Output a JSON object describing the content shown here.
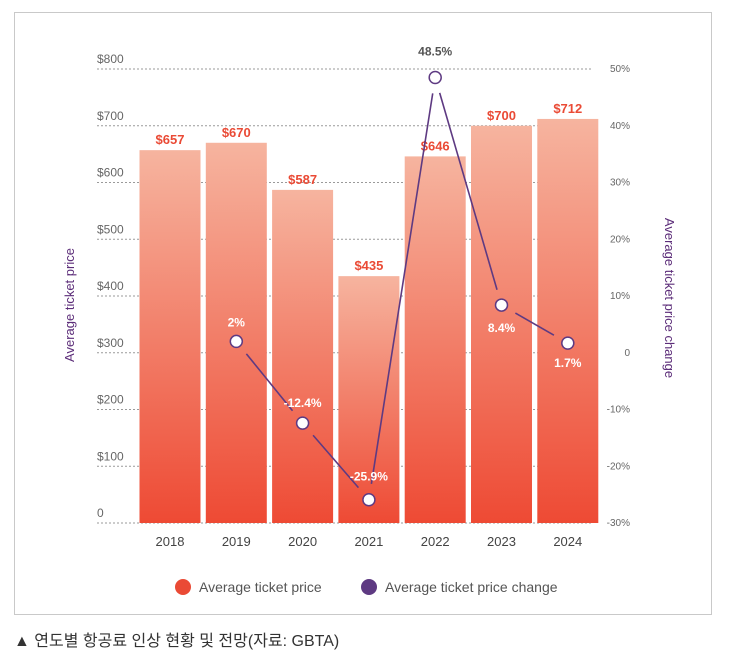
{
  "chart_data": {
    "type": "bar",
    "categories": [
      "2018",
      "2019",
      "2020",
      "2021",
      "2022",
      "2023",
      "2024"
    ],
    "series": [
      {
        "name": "Average ticket price",
        "type": "bar",
        "axis": "left",
        "values": [
          657,
          670,
          587,
          435,
          646,
          700,
          712
        ],
        "labels": [
          "$657",
          "$670",
          "$587",
          "$435",
          "$646",
          "$700",
          "$712"
        ]
      },
      {
        "name": "Average ticket price change",
        "type": "line",
        "axis": "right",
        "values": [
          null,
          2,
          -12.4,
          -25.9,
          48.5,
          8.4,
          1.7
        ],
        "labels": [
          null,
          "2%",
          "-12.4%",
          "-25.9%",
          "48.5%",
          "8.4%",
          "1.7%"
        ]
      }
    ],
    "ylabel_left": "Average ticket price",
    "ylabel_right": "Average ticket price change",
    "ylim_left": [
      0,
      800
    ],
    "ylim_right": [
      -30,
      50
    ],
    "yticks_left": [
      "0",
      "$100",
      "$200",
      "$300",
      "$400",
      "$500",
      "$600",
      "$700",
      "$800"
    ],
    "yticks_right": [
      "-30%",
      "-20%",
      "-10%",
      "0",
      "10%",
      "20%",
      "30%",
      "40%",
      "50%"
    ],
    "grid": true,
    "legend_position": "bottom",
    "colors": {
      "bar_top": "#f6b49f",
      "bar_bottom": "#ee4a34",
      "line": "#5e3a82",
      "bar_label": "#ea4a35"
    }
  },
  "caption": "▲ 연도별 항공료 인상 현황 및 전망(자료: GBTA)"
}
